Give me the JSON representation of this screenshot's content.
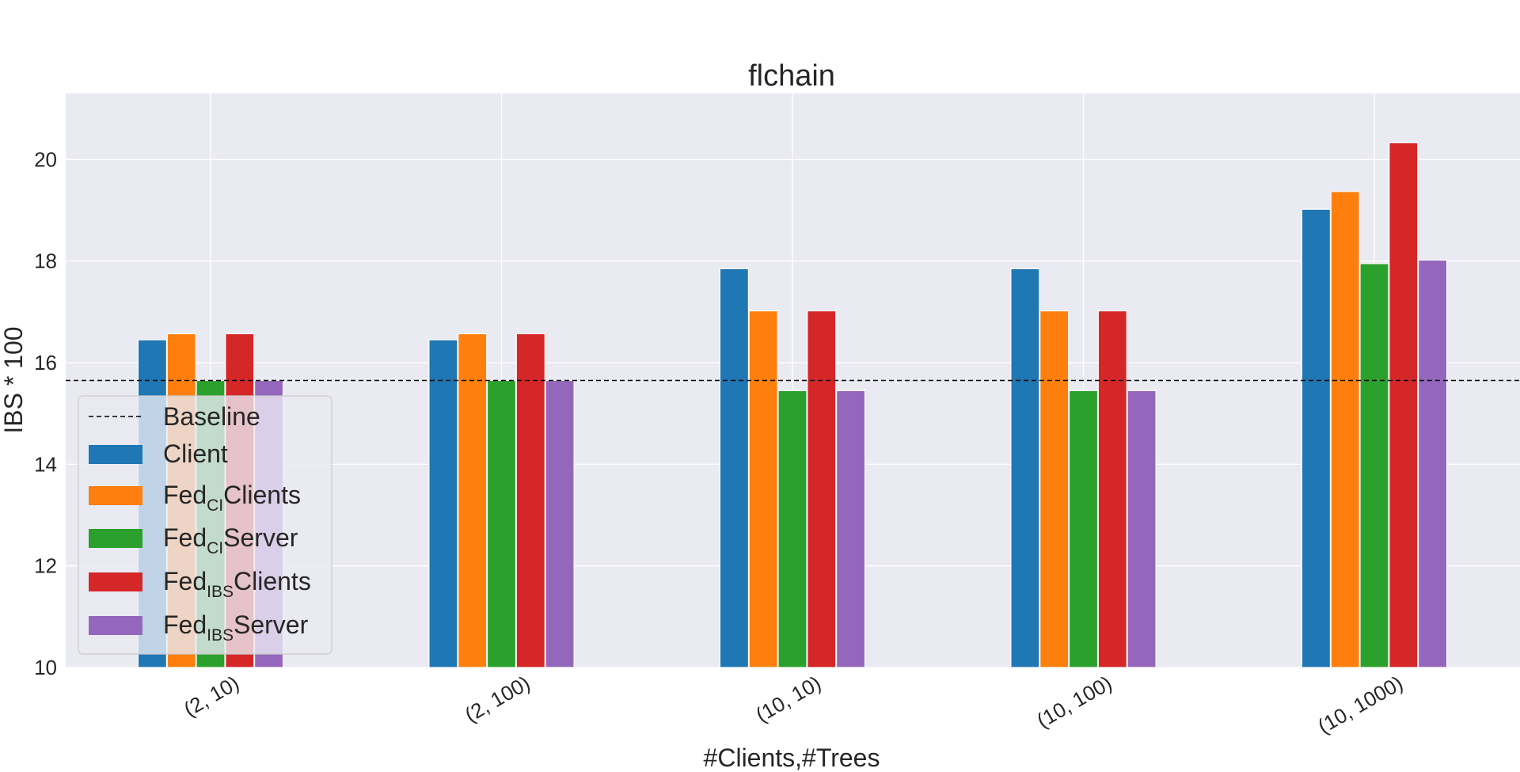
{
  "chart_data": {
    "type": "bar",
    "title": "flchain",
    "xlabel": "#Clients,#Trees",
    "ylabel": "IBS * 100",
    "ylim": [
      10,
      21.3
    ],
    "yticks": [
      10,
      12,
      14,
      16,
      18,
      20
    ],
    "categories": [
      "(2, 10)",
      "(2, 100)",
      "(10, 10)",
      "(10, 100)",
      "(10, 1000)"
    ],
    "grid": true,
    "legend_position": "lower-left",
    "baseline": {
      "name": "Baseline",
      "value": 15.65,
      "style": "dashed",
      "color": "#000000"
    },
    "series": [
      {
        "name": "Client",
        "color": "#1f77b4",
        "values": [
          16.45,
          16.45,
          17.85,
          17.85,
          19.02
        ]
      },
      {
        "name": "FedCIClients",
        "name_main": "Fed",
        "name_sub": "CI",
        "name_rest": "Clients",
        "color": "#ff7f0e",
        "values": [
          16.57,
          16.57,
          17.02,
          17.02,
          19.37
        ]
      },
      {
        "name": "FedCIServer",
        "name_main": "Fed",
        "name_sub": "CI",
        "name_rest": "Server",
        "color": "#2ca02c",
        "values": [
          15.65,
          15.65,
          15.45,
          15.45,
          17.95
        ]
      },
      {
        "name": "FedIBSClients",
        "name_main": "Fed",
        "name_sub": "IBS",
        "name_rest": "Clients",
        "color": "#d62728",
        "values": [
          16.57,
          16.57,
          17.02,
          17.02,
          20.33
        ]
      },
      {
        "name": "FedIBSServer",
        "name_main": "Fed",
        "name_sub": "IBS",
        "name_rest": "Server",
        "color": "#9467bd",
        "values": [
          15.65,
          15.65,
          15.45,
          15.45,
          18.02
        ]
      }
    ]
  }
}
